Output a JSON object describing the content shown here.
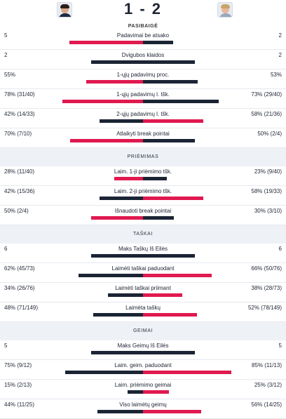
{
  "match": {
    "score": "1 - 2",
    "status": "PASIBAIGĖ"
  },
  "players": {
    "left": {
      "avatar": "player-photo"
    },
    "right": {
      "avatar": "player-photo"
    }
  },
  "colors": {
    "leader": "#e0194f",
    "other": "#1b2434",
    "section_bg": "#eef1f5"
  },
  "sections": [
    {
      "title": "",
      "stats": [
        {
          "label": "Padavimai be atsako",
          "left": "5",
          "right": "2",
          "lf": 0.71,
          "rf": 0.29,
          "lw": "left"
        },
        {
          "label": "Dvigubos klaidos",
          "left": "2",
          "right": "2",
          "lf": 0.5,
          "rf": 0.5,
          "lw": "none"
        },
        {
          "label": "1-ųjų padavimų proc.",
          "left": "55%",
          "right": "53%",
          "lf": 0.55,
          "rf": 0.53,
          "lw": "left"
        },
        {
          "label": "1-ųjų padavimų l. tšk.",
          "left": "78% (31/40)",
          "right": "73% (29/40)",
          "lf": 0.78,
          "rf": 0.73,
          "lw": "left"
        },
        {
          "label": "2-ųjų padavimų l. tšk.",
          "left": "42% (14/33)",
          "right": "58% (21/36)",
          "lf": 0.42,
          "rf": 0.58,
          "lw": "right"
        },
        {
          "label": "Atlaikyti break pointai",
          "left": "70% (7/10)",
          "right": "50% (2/4)",
          "lf": 0.7,
          "rf": 0.5,
          "lw": "left"
        }
      ]
    },
    {
      "title": "PRIĖMIMAS",
      "stats": [
        {
          "label": "Laim. 1-ji priėmimo tšk.",
          "left": "28% (11/40)",
          "right": "23% (9/40)",
          "lf": 0.28,
          "rf": 0.23,
          "lw": "left"
        },
        {
          "label": "Laim. 2-ji priėmimo tšk.",
          "left": "42% (15/36)",
          "right": "58% (19/33)",
          "lf": 0.42,
          "rf": 0.58,
          "lw": "right"
        },
        {
          "label": "Išnaudoti break pointai",
          "left": "50% (2/4)",
          "right": "30% (3/10)",
          "lf": 0.5,
          "rf": 0.3,
          "lw": "left"
        }
      ]
    },
    {
      "title": "TAŠKAI",
      "stats": [
        {
          "label": "Maks Taškų Iš Eilės",
          "left": "6",
          "right": "6",
          "lf": 0.5,
          "rf": 0.5,
          "lw": "none"
        },
        {
          "label": "Laimėti taškai paduodant",
          "left": "62% (45/73)",
          "right": "66% (50/76)",
          "lf": 0.62,
          "rf": 0.66,
          "lw": "right"
        },
        {
          "label": "Laimėti taškai priimant",
          "left": "34% (26/76)",
          "right": "38% (28/73)",
          "lf": 0.34,
          "rf": 0.38,
          "lw": "right"
        },
        {
          "label": "Laimėta taškų",
          "left": "48% (71/149)",
          "right": "52% (78/149)",
          "lf": 0.48,
          "rf": 0.52,
          "lw": "right"
        }
      ]
    },
    {
      "title": "GEIMAI",
      "stats": [
        {
          "label": "Maks Geimų Iš Eilės",
          "left": "5",
          "right": "5",
          "lf": 0.5,
          "rf": 0.5,
          "lw": "none"
        },
        {
          "label": "Laim. geim. paduodant",
          "left": "75% (9/12)",
          "right": "85% (11/13)",
          "lf": 0.75,
          "rf": 0.85,
          "lw": "right"
        },
        {
          "label": "Laim. priėmimo geimai",
          "left": "15% (2/13)",
          "right": "25% (3/12)",
          "lf": 0.15,
          "rf": 0.25,
          "lw": "right"
        },
        {
          "label": "Viso laimėtų geimų",
          "left": "44% (11/25)",
          "right": "56% (14/25)",
          "lf": 0.44,
          "rf": 0.56,
          "lw": "right"
        }
      ]
    }
  ]
}
